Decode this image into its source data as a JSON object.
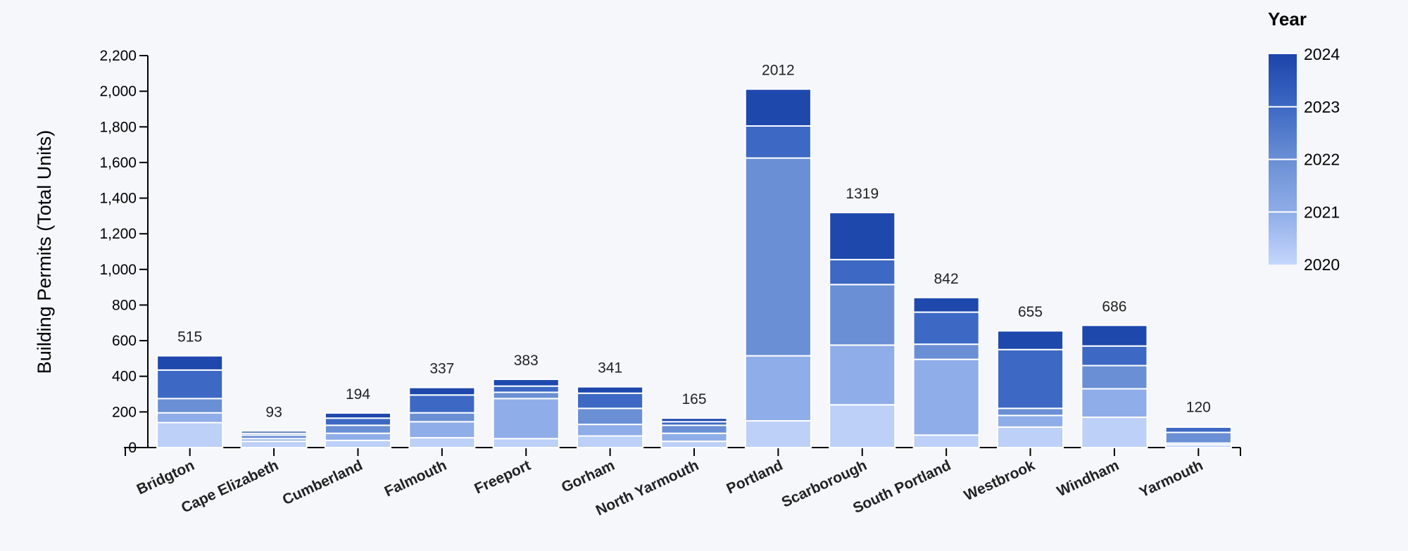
{
  "chart_data": {
    "type": "bar",
    "stacked": true,
    "title": "",
    "xlabel": "",
    "ylabel": "Building Permits (Total Units)",
    "ylim": [
      0,
      2200
    ],
    "yticks": [
      0,
      200,
      400,
      600,
      800,
      1000,
      1200,
      1400,
      1600,
      1800,
      2000,
      2200
    ],
    "ytick_labels": [
      "0",
      "200",
      "400",
      "600",
      "800",
      "1,000",
      "1,200",
      "1,400",
      "1,600",
      "1,800",
      "2,000",
      "2,200"
    ],
    "grid": false,
    "legend": {
      "title": "Year",
      "position": "top-right",
      "type": "gradient"
    },
    "categories": [
      "Bridgton",
      "Cape Elizabeth",
      "Cumberland",
      "Falmouth",
      "Freeport",
      "Gorham",
      "North Yarmouth",
      "Portland",
      "Scarborough",
      "South Portland",
      "Westbrook",
      "Windham",
      "Yarmouth"
    ],
    "series": [
      {
        "name": "2020",
        "color": "#bcd0f8",
        "values": [
          140,
          35,
          40,
          55,
          50,
          65,
          35,
          150,
          240,
          70,
          115,
          170,
          15
        ]
      },
      {
        "name": "2021",
        "color": "#8fade8",
        "values": [
          55,
          15,
          40,
          90,
          225,
          65,
          45,
          365,
          335,
          425,
          65,
          160,
          10
        ]
      },
      {
        "name": "2022",
        "color": "#6a8fd5",
        "values": [
          80,
          20,
          45,
          50,
          35,
          90,
          45,
          1110,
          340,
          85,
          40,
          130,
          60
        ]
      },
      {
        "name": "2023",
        "color": "#3d69c4",
        "values": [
          160,
          10,
          40,
          100,
          35,
          85,
          20,
          180,
          140,
          180,
          330,
          110,
          30
        ]
      },
      {
        "name": "2024",
        "color": "#1f48ad",
        "values": [
          80,
          13,
          29,
          42,
          38,
          36,
          20,
          207,
          264,
          82,
          105,
          116,
          5
        ]
      }
    ],
    "totals": [
      515,
      93,
      194,
      337,
      383,
      341,
      165,
      2012,
      1319,
      842,
      655,
      686,
      120
    ],
    "total_labels": [
      "515",
      "93",
      "194",
      "337",
      "383",
      "341",
      "165",
      "2012",
      "1319",
      "842",
      "655",
      "686",
      "120"
    ]
  }
}
